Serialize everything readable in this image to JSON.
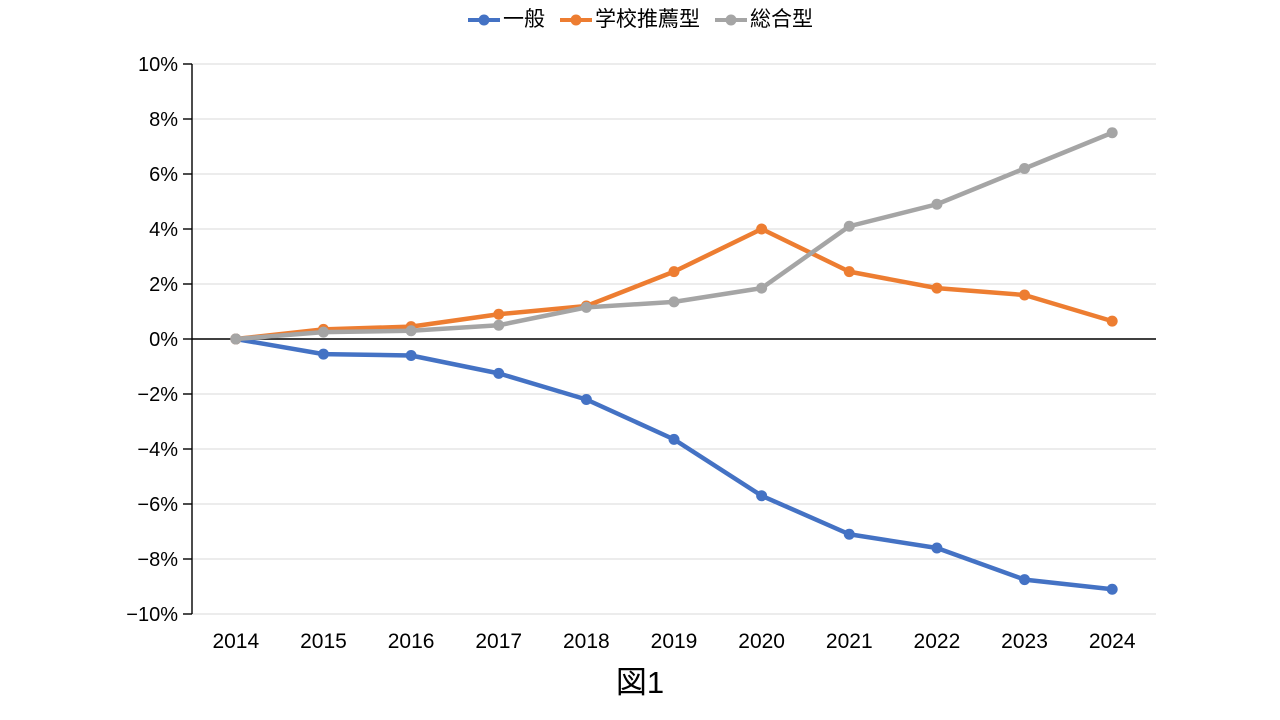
{
  "chart_data": {
    "type": "line",
    "title": "",
    "caption": "図1",
    "categories": [
      "2014",
      "2015",
      "2016",
      "2017",
      "2018",
      "2019",
      "2020",
      "2021",
      "2022",
      "2023",
      "2024"
    ],
    "series": [
      {
        "name": "一般",
        "color": "#4472C4",
        "values": [
          0,
          -0.55,
          -0.6,
          -1.25,
          -2.2,
          -3.65,
          -5.7,
          -7.1,
          -7.6,
          -8.75,
          -9.1
        ]
      },
      {
        "name": "学校推薦型",
        "color": "#ED7D31",
        "values": [
          0,
          0.35,
          0.45,
          0.9,
          1.2,
          2.45,
          4.0,
          2.45,
          1.85,
          1.6,
          0.65
        ]
      },
      {
        "name": "総合型",
        "color": "#A5A5A5",
        "values": [
          0,
          0.25,
          0.3,
          0.5,
          1.15,
          1.35,
          1.85,
          4.1,
          4.9,
          6.2,
          7.5
        ]
      }
    ],
    "ylim": [
      -10,
      10
    ],
    "y_ticks": [
      {
        "value": 10,
        "label": "10%"
      },
      {
        "value": 8,
        "label": "8%"
      },
      {
        "value": 6,
        "label": "6%"
      },
      {
        "value": 4,
        "label": "4%"
      },
      {
        "value": 2,
        "label": "2%"
      },
      {
        "value": 0,
        "label": "0%"
      },
      {
        "value": -2,
        "label": "−2%"
      },
      {
        "value": -4,
        "label": "−4%"
      },
      {
        "value": -6,
        "label": "−6%"
      },
      {
        "value": -8,
        "label": "−8%"
      },
      {
        "value": -10,
        "label": "−10%"
      }
    ],
    "legend_position": "top",
    "grid": true,
    "gridline_color": "#D9D9D9",
    "zero_line_color": "#000000",
    "axis_color": "#000000",
    "background_color": "#FFFFFF"
  }
}
